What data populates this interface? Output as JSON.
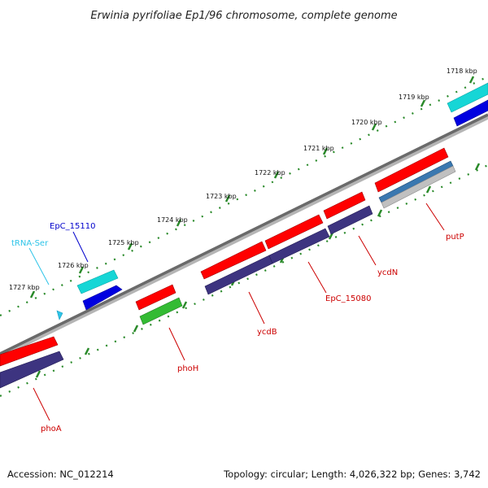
{
  "title": "Erwinia pyrifoliae Ep1/96 chromosome, complete genome",
  "footer": {
    "accession": "Accession: NC_012214",
    "summary": "Topology: circular; Length: 4,026,322 bp; Genes: 3,742"
  },
  "ticks": [
    {
      "label": "1718 kbp"
    },
    {
      "label": "1719 kbp"
    },
    {
      "label": "1720 kbp"
    },
    {
      "label": "1721 kbp"
    },
    {
      "label": "1722 kbp"
    },
    {
      "label": "1723 kbp"
    },
    {
      "label": "1724 kbp"
    },
    {
      "label": "1725 kbp"
    },
    {
      "label": "1726 kbp"
    },
    {
      "label": "1727 kbp"
    }
  ],
  "genes": [
    {
      "label": "tRNA-Ser",
      "color": "#2ec4e8"
    },
    {
      "label": "EpC_15110",
      "color": "#0000cc"
    },
    {
      "label": "phoA",
      "color": "#cc0000"
    },
    {
      "label": "phoH",
      "color": "#cc0000"
    },
    {
      "label": "ycdB",
      "color": "#cc0000"
    },
    {
      "label": "EpC_15080",
      "color": "#cc0000"
    },
    {
      "label": "ycdN",
      "color": "#cc0000"
    },
    {
      "label": "putP",
      "color": "#cc0000"
    }
  ],
  "colors": {
    "cds_red": "#ff0000",
    "cds_navy": "#3d3480",
    "trna_cyan": "#16d6d6",
    "gene_blue": "#0000e0",
    "green": "#33bb33",
    "steel": "#3a78b0",
    "backbone": "#7a7a7a",
    "tick_green": "#2a8a2a"
  }
}
